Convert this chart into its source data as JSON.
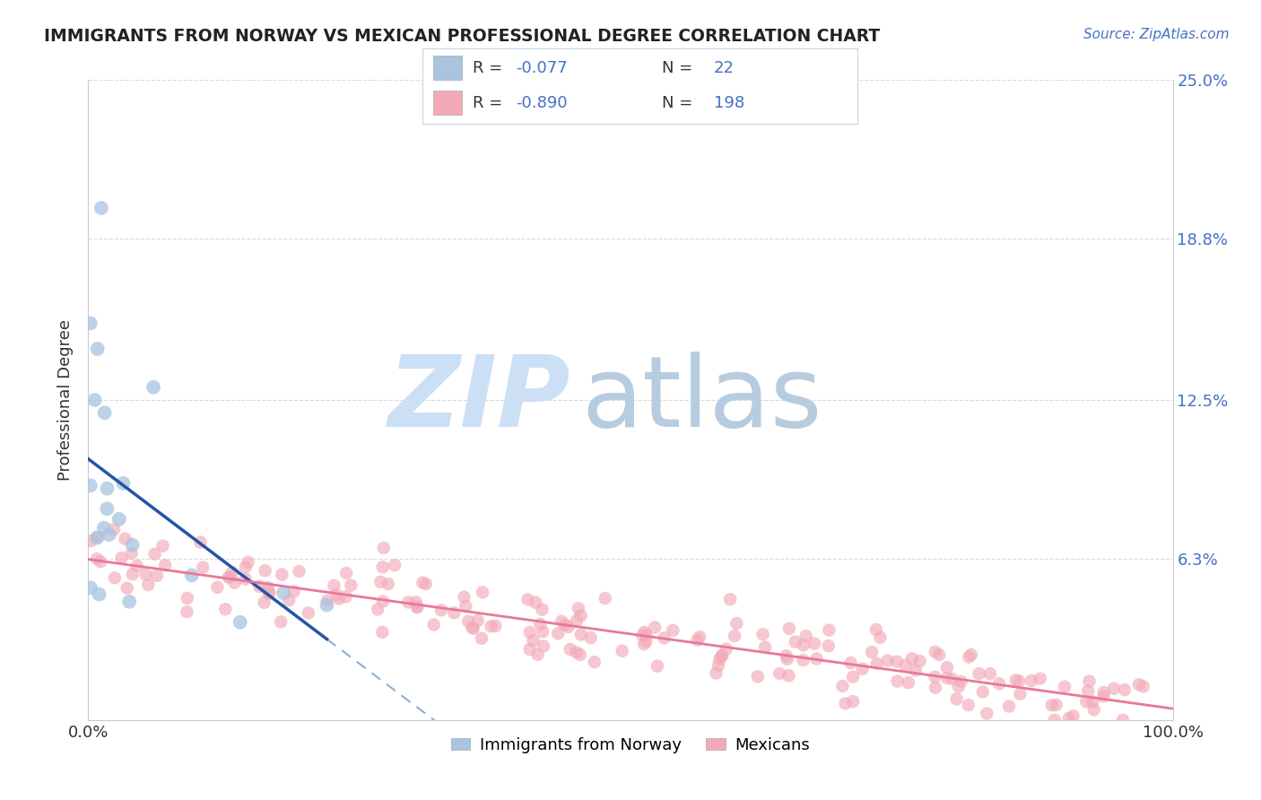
{
  "title": "IMMIGRANTS FROM NORWAY VS MEXICAN PROFESSIONAL DEGREE CORRELATION CHART",
  "source": "Source: ZipAtlas.com",
  "ylabel": "Professional Degree",
  "xlim": [
    0,
    1.0
  ],
  "ylim": [
    0,
    0.25
  ],
  "norway_R": -0.077,
  "norway_N": 22,
  "mexican_R": -0.89,
  "mexican_N": 198,
  "norway_scatter_color": "#a8c4e0",
  "mexican_scatter_color": "#f2aab8",
  "norway_line_color": "#2255aa",
  "norway_dash_color": "#8ab0d8",
  "mexican_line_color": "#e8789a",
  "legend_text_color": "#4472c4",
  "legend_r_color": "#4472c4",
  "legend_n_color": "#4472c4",
  "title_color": "#222222",
  "source_color": "#4472c4",
  "ylabel_color": "#333333",
  "xtick_color": "#333333",
  "ytick_color": "#4472c4",
  "grid_color": "#cccccc",
  "background_color": "#ffffff",
  "watermark_zip_color": "#cce0f5",
  "watermark_atlas_color": "#b8ccdf",
  "legend_box_color": "#e8eef5",
  "legend_border_color": "#c8d4e0"
}
